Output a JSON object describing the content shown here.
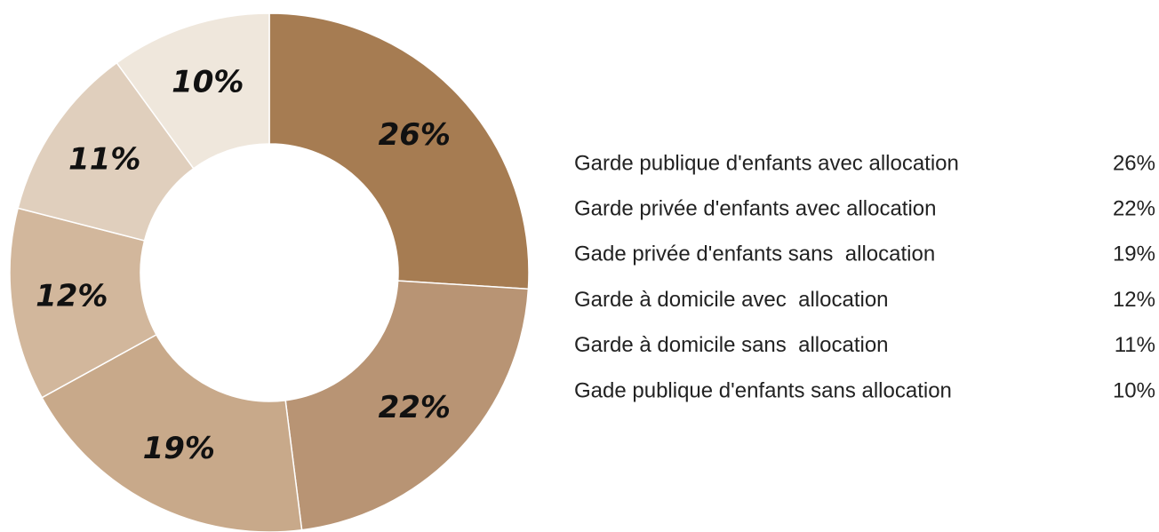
{
  "chart_data": {
    "type": "donut",
    "categories": [
      "Garde publique d'enfants avec allocation",
      "Garde privée d'enfants avec allocation",
      "Gade privée d'enfants sans  allocation",
      "Garde à domicile avec  allocation",
      "Garde à domicile sans  allocation",
      "Gade publique d'enfants sans allocation"
    ],
    "values": [
      26,
      22,
      19,
      12,
      11,
      10
    ],
    "value_labels": [
      "26%",
      "22%",
      "19%",
      "12%",
      "11%",
      "10%"
    ],
    "colors": [
      "#a67c52",
      "#b89474",
      "#c8a98a",
      "#d2b79c",
      "#e0cfbd",
      "#efe7dc"
    ],
    "legend": "right"
  }
}
